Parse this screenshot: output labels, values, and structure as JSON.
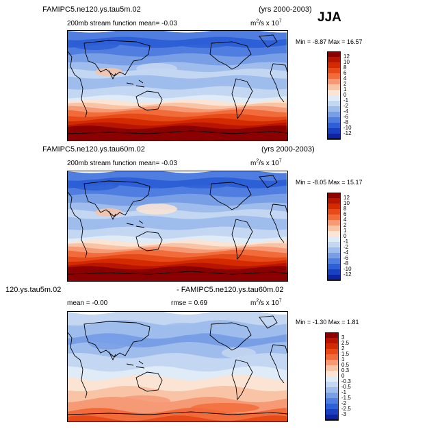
{
  "season": "JJA",
  "panels": [
    {
      "case": "FAMIPC5.ne120.ys.tau5m.02",
      "years": "(yrs 2000-2003)",
      "variable_mean": "200mb stream function  mean=   -0.03",
      "units_base": "m",
      "units_exp1": "2",
      "units_mid": "/s x 10",
      "units_exp2": "7",
      "minmax": "Min =   -8.87  Max =   16.57",
      "colorbar": {
        "labels": [
          "12",
          "10",
          "8",
          "6",
          "4",
          "2",
          "1",
          "0",
          "-1",
          "-2",
          "-4",
          "-6",
          "-8",
          "-10",
          "-12"
        ],
        "colors": [
          "#8b0000",
          "#b71500",
          "#d42a00",
          "#e64a19",
          "#f26c3b",
          "#f69a75",
          "#f9c3a6",
          "#fbe4d3",
          "#e0ebf8",
          "#c4d7f2",
          "#9fbdec",
          "#789fe6",
          "#4f7ee0",
          "#2d5fd6",
          "#1a3fc0",
          "#0d23a0"
        ]
      },
      "field": "control"
    },
    {
      "case": "FAMIPC5.ne120.ys.tau60m.02",
      "years": "(yrs 2000-2003)",
      "variable_mean": "200mb stream function  mean=   -0.03",
      "units_base": "m",
      "units_exp1": "2",
      "units_mid": "/s x 10",
      "units_exp2": "7",
      "minmax": "Min =   -8.05  Max =   15.17",
      "colorbar": {
        "labels": [
          "12",
          "10",
          "8",
          "6",
          "4",
          "2",
          "1",
          "0",
          "-1",
          "-2",
          "-4",
          "-6",
          "-8",
          "-10",
          "-12"
        ],
        "colors": [
          "#8b0000",
          "#b71500",
          "#d42a00",
          "#e64a19",
          "#f26c3b",
          "#f69a75",
          "#f9c3a6",
          "#fbe4d3",
          "#e0ebf8",
          "#c4d7f2",
          "#9fbdec",
          "#789fe6",
          "#4f7ee0",
          "#2d5fd6",
          "#1a3fc0",
          "#0d23a0"
        ]
      },
      "field": "test"
    },
    {
      "case": "120.ys.tau5m.02",
      "years": "- FAMIPC5.ne120.ys.tau60m.02",
      "mean_text": "mean =   -0.00",
      "rmse_text": "rmse =     0.69",
      "units_base": "m",
      "units_exp1": "2",
      "units_mid": "/s x 10",
      "units_exp2": "7",
      "minmax": "Min =  -1.30  Max =    1.81",
      "colorbar": {
        "labels": [
          "3",
          "2.5",
          "2",
          "1.5",
          "1",
          "0.5",
          "0.3",
          "0",
          "-0.3",
          "-0.5",
          "-1",
          "-1.5",
          "-2",
          "-2.5",
          "-3"
        ],
        "colors": [
          "#8b0000",
          "#b71500",
          "#d42a00",
          "#e64a19",
          "#f26c3b",
          "#f69a75",
          "#f9c3a6",
          "#fbe4d3",
          "#e0ebf8",
          "#c4d7f2",
          "#9fbdec",
          "#789fe6",
          "#4f7ee0",
          "#2d5fd6",
          "#1a3fc0",
          "#0d23a0"
        ]
      },
      "field": "difference"
    }
  ]
}
